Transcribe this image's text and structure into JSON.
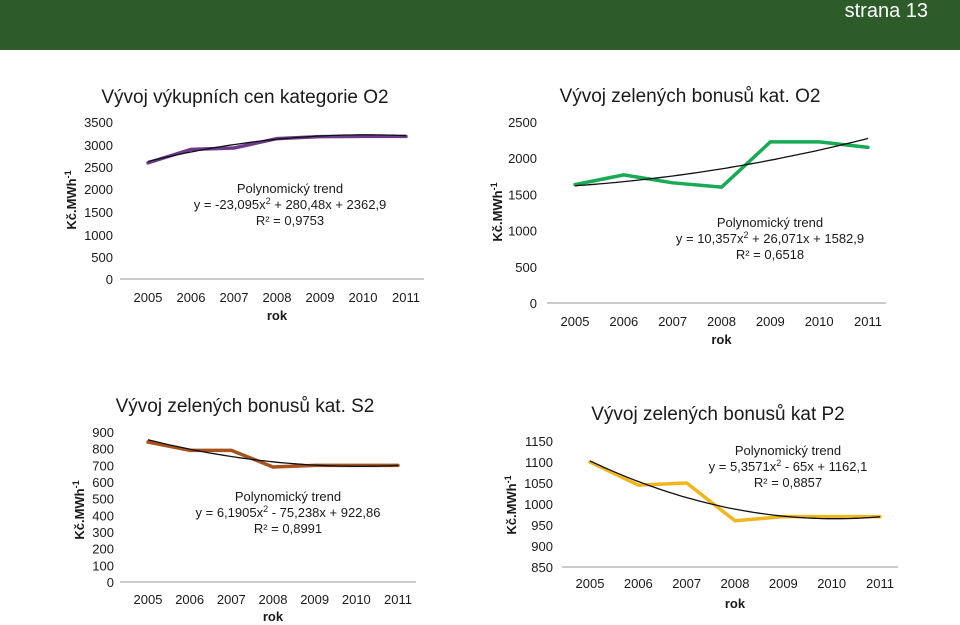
{
  "header": {
    "page_label": "strana 13",
    "bar_color": "#2d5b2a"
  },
  "chart_data": [
    {
      "type": "line",
      "title": "Vývoj výkupních cen kategorie O2",
      "xlabel": "rok",
      "ylabel": "Kč.MWh",
      "ylabel_sup": "-1",
      "x": [
        "2005",
        "2006",
        "2007",
        "2008",
        "2009",
        "2010",
        "2011"
      ],
      "ylim": [
        0,
        3500
      ],
      "yticks": [
        "0",
        "500",
        "1000",
        "1500",
        "2000",
        "2500",
        "3000",
        "3500"
      ],
      "series": [
        {
          "values": [
            2590,
            2890,
            2920,
            3130,
            3175,
            3180,
            3180
          ],
          "color": "#6e3b8c"
        }
      ],
      "trend": {
        "coef": [
          -23.095,
          280.48,
          2362.9
        ],
        "color": "#111111",
        "title": "Polynomický trend",
        "eq_pre": "y = -23,095x",
        "eq_sup": "2",
        "eq_post": " + 280,48x + 2362,9",
        "r2": "R² = 0,9753"
      }
    },
    {
      "type": "line",
      "title": "Vývoj zelených bonusů kat. O2",
      "xlabel": "rok",
      "ylabel": "Kč.MWh",
      "ylabel_sup": "-1",
      "x": [
        "2005",
        "2006",
        "2007",
        "2008",
        "2009",
        "2010",
        "2011"
      ],
      "ylim": [
        0,
        2500
      ],
      "yticks": [
        "0",
        "500",
        "1000",
        "1500",
        "2000",
        "2500"
      ],
      "series": [
        {
          "values": [
            1635,
            1770,
            1660,
            1600,
            2225,
            2225,
            2150
          ],
          "color": "#1aaa55"
        }
      ],
      "trend": {
        "coef": [
          10.357,
          26.071,
          1582.9
        ],
        "color": "#111111",
        "title": "Polynomický trend",
        "eq_pre": "y = 10,357x",
        "eq_sup": "2",
        "eq_post": " + 26,071x + 1582,9",
        "r2": "R² = 0,6518"
      }
    },
    {
      "type": "line",
      "title": "Vývoj zelených bonusů kat. S2",
      "xlabel": "rok",
      "ylabel": "Kč.MWh",
      "ylabel_sup": "-1",
      "x": [
        "2005",
        "2006",
        "2007",
        "2008",
        "2009",
        "2010",
        "2011"
      ],
      "ylim": [
        0,
        900
      ],
      "yticks": [
        "0",
        "100",
        "200",
        "300",
        "400",
        "500",
        "600",
        "700",
        "800",
        "900"
      ],
      "series": [
        {
          "values": [
            840,
            790,
            790,
            690,
            700,
            700,
            700
          ],
          "color": "#a8521f"
        }
      ],
      "trend": {
        "coef": [
          6.1905,
          -75.238,
          922.86
        ],
        "color": "#111111",
        "title": "Polynomický trend",
        "eq_pre": "y = 6,1905x",
        "eq_sup": "2",
        "eq_post": " - 75,238x + 922,86",
        "r2": "R² = 0,8991"
      }
    },
    {
      "type": "line",
      "title": "Vývoj zelených bonusů kat P2",
      "xlabel": "rok",
      "ylabel": "Kč.MWh",
      "ylabel_sup": "-1",
      "x": [
        "2005",
        "2006",
        "2007",
        "2008",
        "2009",
        "2010",
        "2011"
      ],
      "ylim": [
        850,
        1150
      ],
      "yticks": [
        "850",
        "900",
        "950",
        "1000",
        "1050",
        "1100",
        "1150"
      ],
      "series": [
        {
          "values": [
            1100,
            1045,
            1050,
            960,
            970,
            970,
            970
          ],
          "color": "#f0b61e"
        }
      ],
      "trend": {
        "coef": [
          5.3571,
          -65,
          1162.1
        ],
        "color": "#111111",
        "title": "Polynomický trend",
        "eq_pre": "y = 5,3571x",
        "eq_sup": "2",
        "eq_post": " - 65x + 1162,1",
        "r2": "R² = 0,8857"
      }
    }
  ]
}
